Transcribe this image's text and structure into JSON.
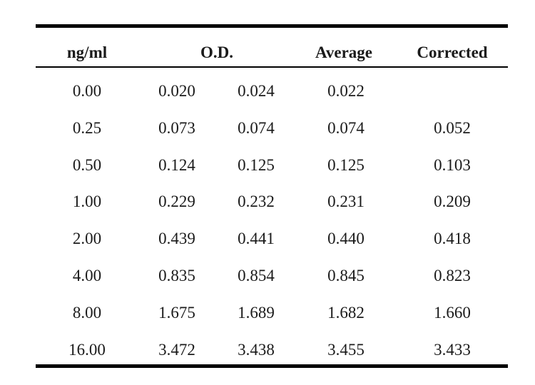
{
  "table": {
    "headers": {
      "concentration": "ng/ml",
      "od": "O.D.",
      "average": "Average",
      "corrected": "Corrected"
    },
    "rows": [
      {
        "conc": "0.00",
        "od1": "0.020",
        "od2": "0.024",
        "avg": "0.022",
        "corr": ""
      },
      {
        "conc": "0.25",
        "od1": "0.073",
        "od2": "0.074",
        "avg": "0.074",
        "corr": "0.052"
      },
      {
        "conc": "0.50",
        "od1": "0.124",
        "od2": "0.125",
        "avg": "0.125",
        "corr": "0.103"
      },
      {
        "conc": "1.00",
        "od1": "0.229",
        "od2": "0.232",
        "avg": "0.231",
        "corr": "0.209"
      },
      {
        "conc": "2.00",
        "od1": "0.439",
        "od2": "0.441",
        "avg": "0.440",
        "corr": "0.418"
      },
      {
        "conc": "4.00",
        "od1": "0.835",
        "od2": "0.854",
        "avg": "0.845",
        "corr": "0.823"
      },
      {
        "conc": "8.00",
        "od1": "1.675",
        "od2": "1.689",
        "avg": "1.682",
        "corr": "1.660"
      },
      {
        "conc": "16.00",
        "od1": "3.472",
        "od2": "3.438",
        "avg": "3.455",
        "corr": "3.433"
      }
    ]
  }
}
